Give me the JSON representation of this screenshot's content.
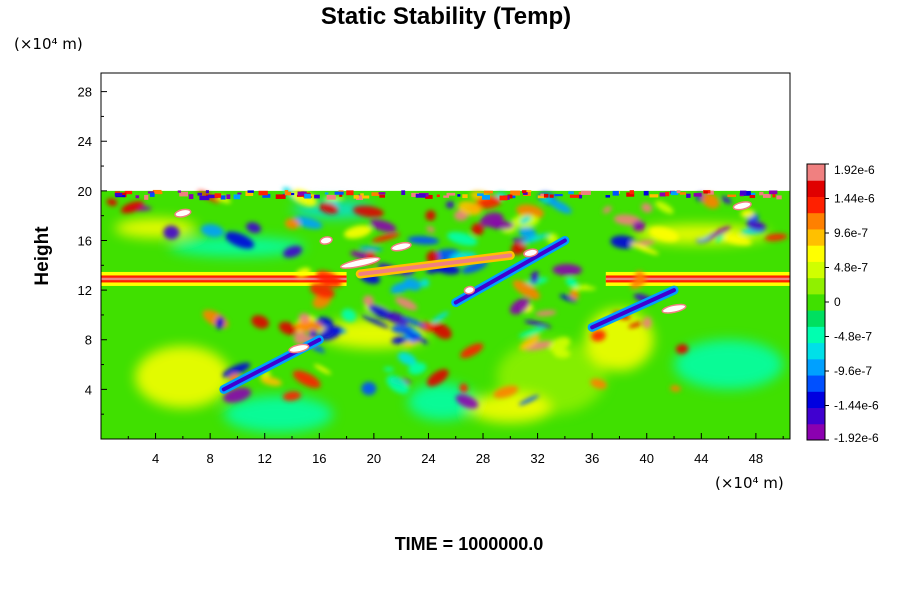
{
  "chart_data": {
    "type": "heatmap",
    "title": "Static Stability (Temp)",
    "ylabel": "Height",
    "xlabel": "",
    "x_unit": "(×10⁴ m)",
    "y_unit": "(×10⁴ m)",
    "x_ticks": [
      4,
      8,
      12,
      16,
      20,
      24,
      28,
      32,
      36,
      40,
      44,
      48
    ],
    "y_ticks": [
      4,
      8,
      12,
      16,
      20,
      24,
      28
    ],
    "xlim": [
      0,
      50.5
    ],
    "ylim": [
      0,
      29.5
    ],
    "field_top": 20,
    "colorbar": {
      "labels": [
        "1.92e-6",
        "1.44e-6",
        "9.6e-7",
        "4.8e-7",
        "0",
        "-4.8e-7",
        "-9.6e-7",
        "-1.44e-6",
        "-1.92e-6"
      ],
      "values": [
        1.92e-06,
        1.44e-06,
        9.6e-07,
        4.8e-07,
        0,
        -4.8e-07,
        -9.6e-07,
        -1.44e-06,
        -1.92e-06
      ],
      "min": -1.92e-06,
      "max": 1.92e-06,
      "colors": [
        "#8b00b0",
        "#4000d0",
        "#0000e0",
        "#0050ff",
        "#00a0ff",
        "#00e0e8",
        "#00ffb0",
        "#00e060",
        "#40e000",
        "#90f000",
        "#d0ff00",
        "#ffff00",
        "#ffc000",
        "#ff8000",
        "#ff2000",
        "#e00000",
        "#f08080"
      ]
    },
    "features": [
      {
        "name": "jet",
        "x": [
          0,
          18
        ],
        "y": 12.9,
        "value": 1.9e-06
      },
      {
        "name": "jet",
        "x": [
          37,
          50.5
        ],
        "y": 12.9,
        "value": 1.9e-06
      },
      {
        "name": "streak",
        "x": [
          19,
          30
        ],
        "y": [
          13.3,
          14.8
        ],
        "value": 1.9e-06
      },
      {
        "name": "streak",
        "x": [
          26,
          34
        ],
        "y": [
          11,
          16
        ],
        "value": -1.6e-06
      },
      {
        "name": "streak",
        "x": [
          9,
          16
        ],
        "y": [
          4,
          8
        ],
        "value": -1.5e-06
      },
      {
        "name": "streak",
        "x": [
          36,
          42
        ],
        "y": [
          9,
          12
        ],
        "value": -1.5e-06
      }
    ]
  },
  "footer": {
    "time_label": "TIME = 1000000.0"
  }
}
